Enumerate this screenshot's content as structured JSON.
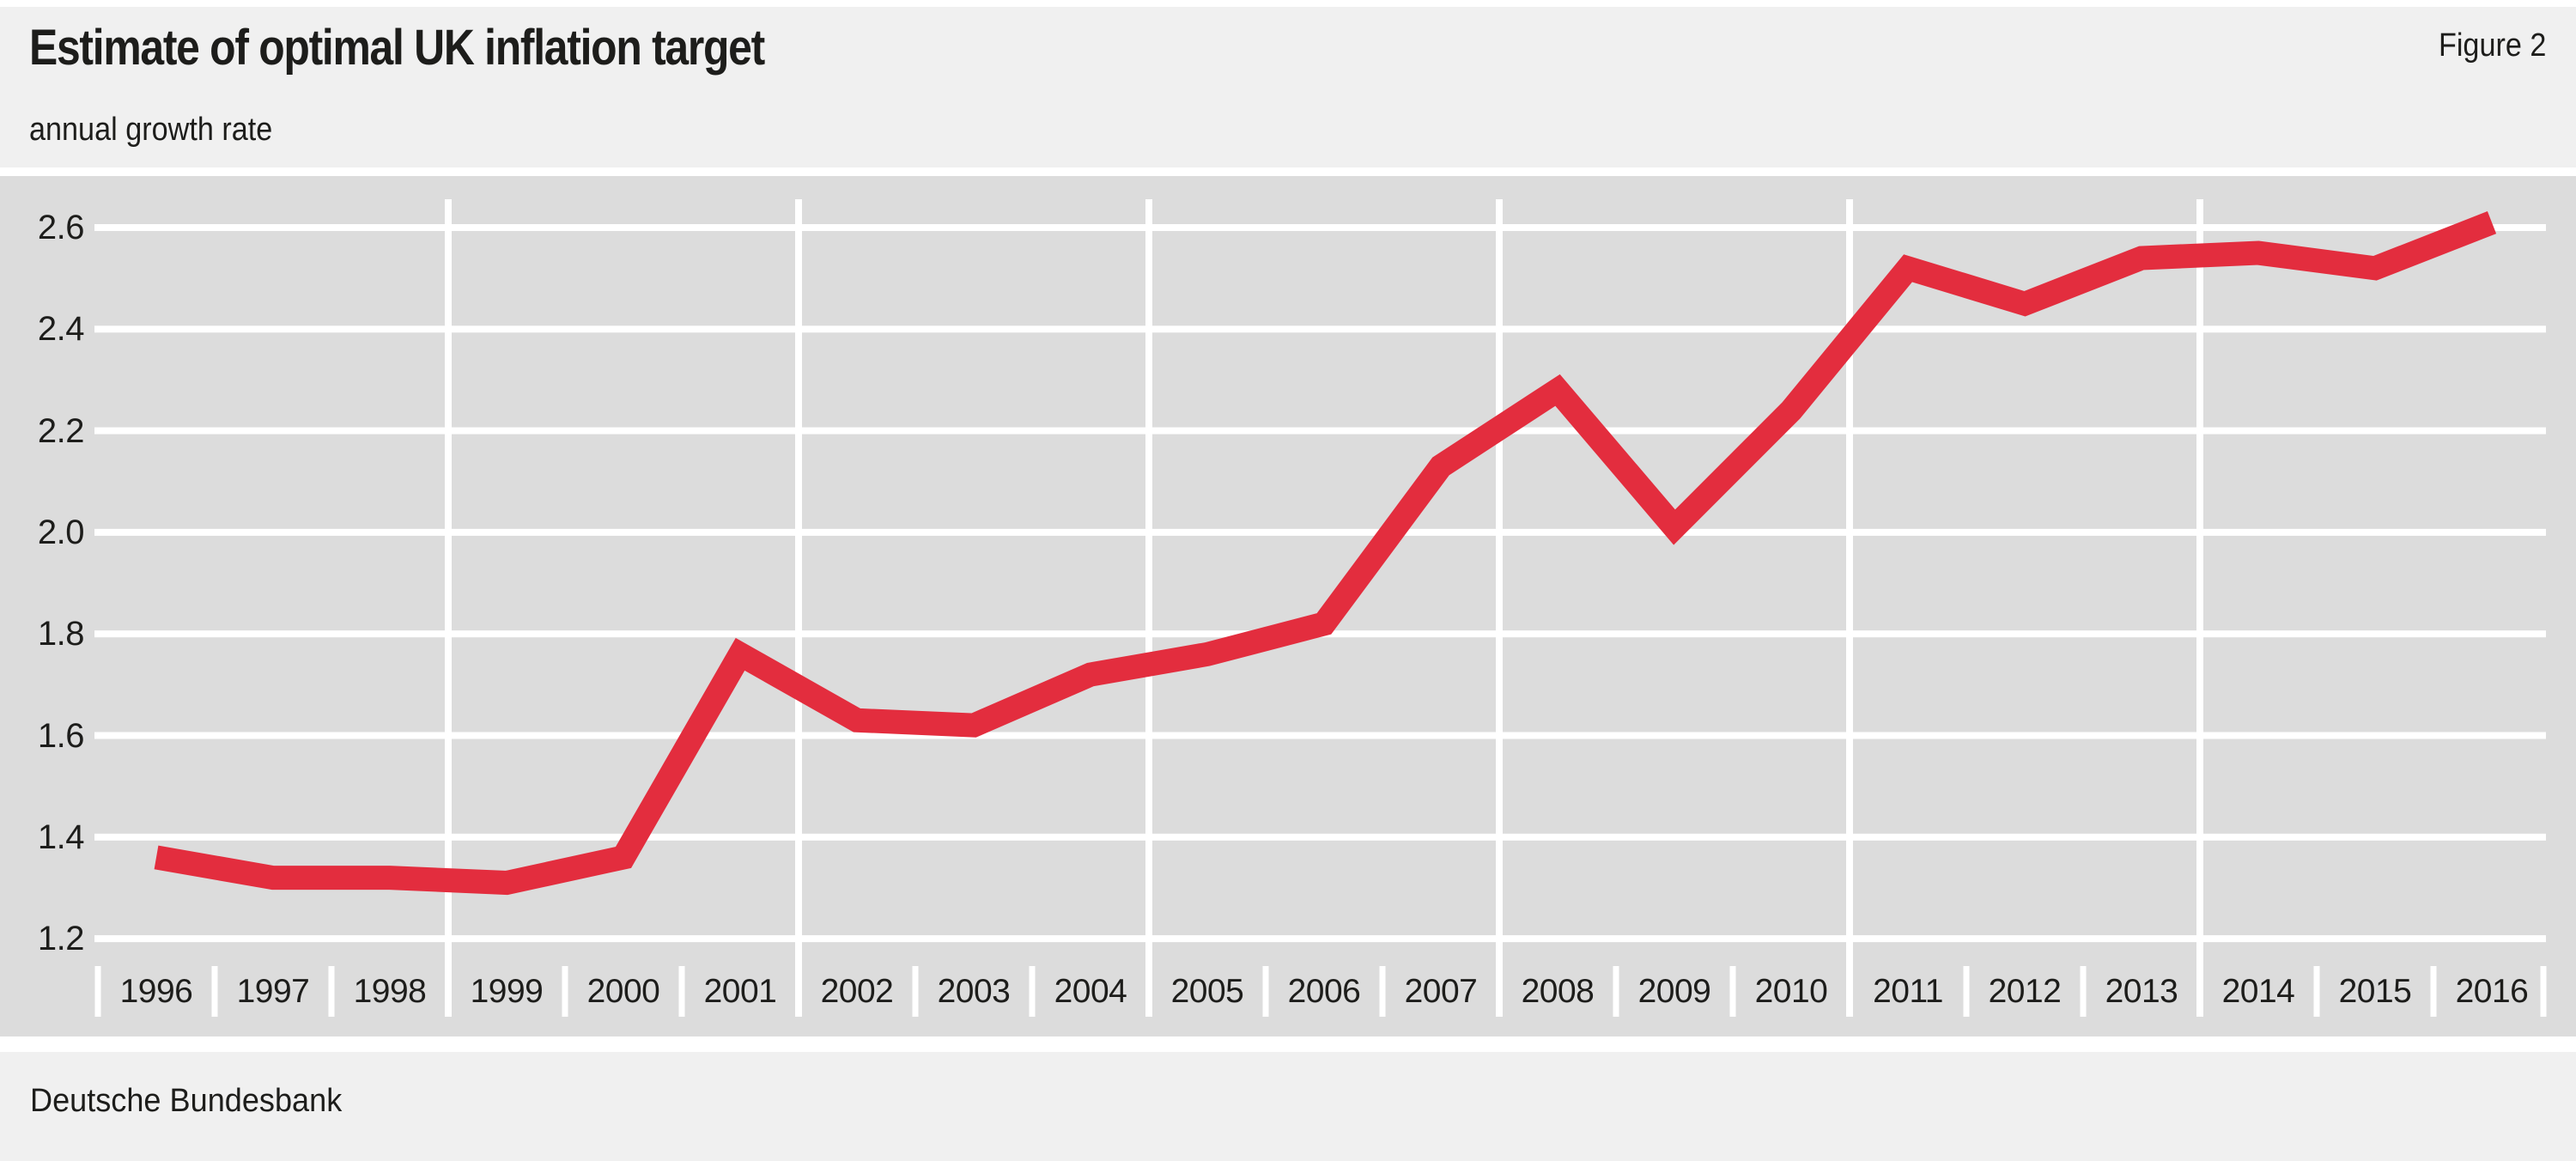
{
  "header": {
    "title": "Estimate of optimal UK inflation target",
    "figure_label": "Figure 2",
    "subtitle": "annual growth rate"
  },
  "footer": {
    "source": "Deutsche Bundesbank"
  },
  "colors": {
    "line_red": "#e32d3e",
    "plot_background": "#dcdcdc",
    "band_background": "#f0f0f0",
    "gridline": "#ffffff",
    "text": "#1d1d1b"
  },
  "chart_data": {
    "type": "line",
    "title": "Estimate of optimal UK inflation target",
    "subtitle": "annual growth rate",
    "source": "Deutsche Bundesbank",
    "xlabel": "",
    "ylabel": "annual growth rate",
    "x": [
      1996,
      1997,
      1998,
      1999,
      2000,
      2001,
      2002,
      2003,
      2004,
      2005,
      2006,
      2007,
      2008,
      2009,
      2010,
      2011,
      2012,
      2013,
      2014,
      2015,
      2016
    ],
    "series": [
      {
        "name": "Estimate of optimal UK inflation target",
        "values": [
          1.36,
          1.32,
          1.32,
          1.31,
          1.36,
          1.76,
          1.63,
          1.62,
          1.72,
          1.76,
          1.82,
          2.13,
          2.28,
          2.01,
          2.24,
          2.52,
          2.45,
          2.54,
          2.55,
          2.52,
          2.61
        ],
        "color": "#e32d3e"
      }
    ],
    "ylim": [
      1.1,
      2.7
    ],
    "yticks": [
      1.2,
      1.4,
      1.6,
      1.8,
      2.0,
      2.2,
      2.4,
      2.6
    ],
    "ytick_labels": [
      "1.2",
      "1.4",
      "1.6",
      "1.8",
      "2.0",
      "2.2",
      "2.4",
      "2.6"
    ],
    "xtick_labels": [
      "1996",
      "1997",
      "1998",
      "1999",
      "2000",
      "2001",
      "2002",
      "2003",
      "2004",
      "2005",
      "2006",
      "2007",
      "2008",
      "2009",
      "2010",
      "2011",
      "2012",
      "2013",
      "2014",
      "2015",
      "2016"
    ],
    "x_gridline_boundaries": [
      1998.5,
      2001.5,
      2004.5,
      2007.5,
      2010.5,
      2013.5
    ],
    "grid": "white gridlines on grey plot area, horizontal at each ytick, vertical every 3 years",
    "legend_position": "none"
  }
}
